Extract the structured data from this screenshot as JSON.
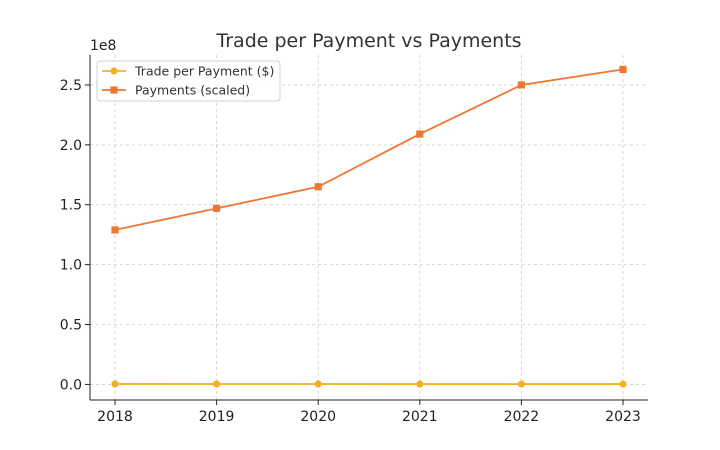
{
  "chart_data": {
    "type": "line",
    "title": "Trade per Payment vs Payments",
    "xlabel": "",
    "ylabel": "",
    "y_offset_label": "1e8",
    "x": [
      "2018",
      "2019",
      "2020",
      "2021",
      "2022",
      "2023"
    ],
    "ylim": [
      -0.13,
      2.75
    ],
    "yticks": [
      0.0,
      0.5,
      1.0,
      1.5,
      2.0,
      2.5
    ],
    "ytick_labels": [
      "0.0",
      "0.5",
      "1.0",
      "1.5",
      "2.0",
      "2.5"
    ],
    "grid": true,
    "legend_position": "top-left",
    "series": [
      {
        "name": "Trade per Payment ($)",
        "marker": "circle",
        "color": "#f5b120",
        "values": [
          0.004,
          0.0035,
          0.0035,
          0.003,
          0.003,
          0.003
        ]
      },
      {
        "name": "Payments (scaled)",
        "marker": "square",
        "color": "#ee7733",
        "values": [
          1.29,
          1.47,
          1.65,
          2.09,
          2.5,
          2.63
        ]
      }
    ]
  }
}
